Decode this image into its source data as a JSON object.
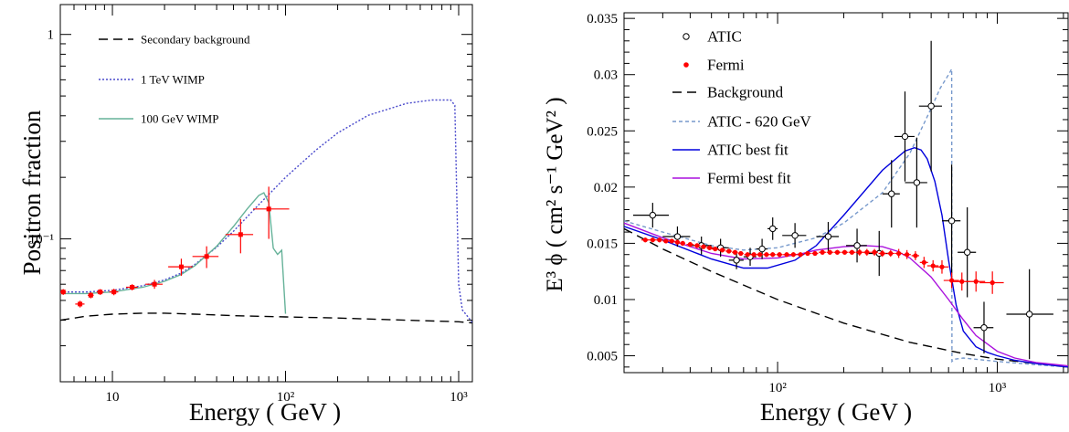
{
  "chart_data": [
    {
      "type": "line",
      "ylabel": "Positron fraction",
      "xlabel": "Energy  ( GeV )",
      "xscale": "log",
      "yscale": "log",
      "xlim": [
        5,
        1200
      ],
      "ylim": [
        0.02,
        1.4
      ],
      "x_ticks": [
        {
          "v": 10,
          "t": "10"
        },
        {
          "v": 100,
          "t": "10²"
        },
        {
          "v": 1000,
          "t": "10³"
        }
      ],
      "y_ticks": [
        {
          "v": 0.1,
          "t": "10⁻¹"
        },
        {
          "v": 1,
          "t": "1"
        }
      ],
      "legend_position": "top-left",
      "legend": [
        {
          "label": "Secondary background",
          "color": "#000000",
          "dash": "10 6"
        },
        {
          "label": "1 TeV WIMP",
          "color": "#4a4acc",
          "dash": "2 2"
        },
        {
          "label": "100 GeV WIMP",
          "color": "#66b299",
          "dash": ""
        }
      ],
      "series": [
        {
          "label": "Secondary background",
          "color": "#000000",
          "dash": "10 6",
          "x": [
            5,
            7,
            10,
            15,
            20,
            30,
            50,
            100,
            200,
            500,
            1000,
            1200
          ],
          "y": [
            0.04,
            0.0418,
            0.0428,
            0.0433,
            0.0433,
            0.0428,
            0.0421,
            0.0415,
            0.041,
            0.04,
            0.0393,
            0.0388
          ]
        },
        {
          "label": "1 TeV WIMP",
          "color": "#4a4acc",
          "dash": "2 2",
          "x": [
            5,
            7,
            10,
            15,
            20,
            25,
            30,
            40,
            50,
            70,
            100,
            150,
            200,
            300,
            500,
            700,
            900,
            950,
            1000,
            1050,
            1200
          ],
          "y": [
            0.055,
            0.055,
            0.056,
            0.059,
            0.063,
            0.068,
            0.075,
            0.091,
            0.109,
            0.147,
            0.2,
            0.272,
            0.33,
            0.402,
            0.46,
            0.478,
            0.478,
            0.45,
            0.06,
            0.045,
            0.039
          ]
        },
        {
          "label": "100 GeV WIMP",
          "color": "#66b299",
          "dash": "",
          "x": [
            5,
            7,
            10,
            15,
            20,
            25,
            30,
            40,
            50,
            60,
            70,
            75,
            80,
            85,
            90,
            95,
            100
          ],
          "y": [
            0.054,
            0.054,
            0.055,
            0.058,
            0.062,
            0.067,
            0.074,
            0.092,
            0.115,
            0.14,
            0.163,
            0.168,
            0.15,
            0.09,
            0.084,
            0.088,
            0.043
          ]
        }
      ],
      "points": [
        {
          "label": "",
          "color": "#ff0000",
          "marker": "filled-square",
          "x": [
            5.2,
            6.5,
            7.5,
            8.5,
            10.2,
            13.0,
            17.5,
            25.0,
            35.0,
            55.0,
            80.0
          ],
          "y": [
            0.055,
            0.048,
            0.053,
            0.055,
            0.055,
            0.058,
            0.06,
            0.073,
            0.082,
            0.105,
            0.14
          ],
          "xerr_lo": [
            0.2,
            0.4,
            0.3,
            0.4,
            0.6,
            1.0,
            2.0,
            4.0,
            6.0,
            10.0,
            15.0
          ],
          "xerr_hi": [
            0.2,
            0.4,
            0.3,
            0.4,
            0.6,
            1.0,
            2.0,
            4.0,
            6.0,
            10.0,
            25.0
          ],
          "yerr": [
            0.0018,
            0.0018,
            0.0018,
            0.0018,
            0.002,
            0.002,
            0.003,
            0.007,
            0.01,
            0.02,
            0.04
          ]
        }
      ]
    },
    {
      "type": "line",
      "ylabel": "E³ ϕ  ( cm² s⁻¹ GeV² )",
      "xlabel": "Energy  ( GeV )",
      "xscale": "log",
      "yscale": "linear",
      "xlim": [
        20,
        2100
      ],
      "ylim": [
        0.0035,
        0.0355
      ],
      "x_ticks": [
        {
          "v": 100,
          "t": "10²"
        },
        {
          "v": 1000,
          "t": "10³"
        }
      ],
      "y_ticks": [
        {
          "v": 0.005,
          "t": "0.005"
        },
        {
          "v": 0.01,
          "t": "0.01"
        },
        {
          "v": 0.015,
          "t": "0.015"
        },
        {
          "v": 0.02,
          "t": "0.02"
        },
        {
          "v": 0.025,
          "t": "0.025"
        },
        {
          "v": 0.03,
          "t": "0.03"
        },
        {
          "v": 0.035,
          "t": "0.035"
        }
      ],
      "legend_position": "top-left",
      "legend": [
        {
          "label": "ATIC",
          "color": "#000000",
          "marker": "open-circle"
        },
        {
          "label": "Fermi",
          "color": "#ff0000",
          "marker": "filled-circle"
        },
        {
          "label": "Background",
          "color": "#000000",
          "dash": "10 6"
        },
        {
          "label": "ATIC - 620 GeV",
          "color": "#7799cc",
          "dash": "4 3"
        },
        {
          "label": "ATIC best fit",
          "color": "#0000dd",
          "dash": ""
        },
        {
          "label": "Fermi best fit",
          "color": "#aa11dd",
          "dash": ""
        }
      ],
      "series": [
        {
          "label": "Background",
          "color": "#000000",
          "dash": "10 6",
          "x": [
            20,
            30,
            50,
            100,
            200,
            400,
            700,
            1000,
            1500,
            2100
          ],
          "y": [
            0.0163,
            0.0145,
            0.0125,
            0.01,
            0.0079,
            0.0062,
            0.0052,
            0.0047,
            0.0043,
            0.004
          ]
        },
        {
          "label": "ATIC - 620 GeV",
          "color": "#7799cc",
          "dash": "4 3",
          "x": [
            20,
            30,
            50,
            70,
            100,
            150,
            200,
            300,
            400,
            500,
            550,
            600,
            620,
            622,
            640,
            700,
            1000,
            1500,
            2100
          ],
          "y": [
            0.017,
            0.016,
            0.0148,
            0.0144,
            0.0146,
            0.0155,
            0.0168,
            0.0195,
            0.023,
            0.027,
            0.0288,
            0.03,
            0.0305,
            0.0045,
            0.0047,
            0.0048,
            0.0045,
            0.0042,
            0.004
          ]
        },
        {
          "label": "ATIC best fit",
          "color": "#0000dd",
          "dash": "",
          "x": [
            20,
            30,
            50,
            70,
            90,
            120,
            150,
            200,
            300,
            380,
            420,
            450,
            480,
            520,
            560,
            600,
            650,
            700,
            800,
            900,
            1000,
            1200,
            1500,
            2100
          ],
          "y": [
            0.0165,
            0.0153,
            0.0136,
            0.0128,
            0.0128,
            0.0135,
            0.0148,
            0.0175,
            0.0215,
            0.0232,
            0.0235,
            0.0233,
            0.0225,
            0.0205,
            0.0175,
            0.0135,
            0.0095,
            0.0072,
            0.0058,
            0.0053,
            0.005,
            0.0046,
            0.0043,
            0.004
          ]
        },
        {
          "label": "Fermi best fit",
          "color": "#aa11dd",
          "dash": "",
          "x": [
            20,
            30,
            50,
            70,
            100,
            130,
            150,
            200,
            250,
            300,
            350,
            400,
            500,
            600,
            700,
            800,
            1000,
            1200,
            1500,
            2100
          ],
          "y": [
            0.0168,
            0.0155,
            0.0141,
            0.0136,
            0.0137,
            0.0141,
            0.0144,
            0.0147,
            0.0148,
            0.0147,
            0.0143,
            0.0137,
            0.012,
            0.01,
            0.0082,
            0.0068,
            0.0054,
            0.0048,
            0.0044,
            0.0041
          ]
        }
      ],
      "points": [
        {
          "label": "ATIC",
          "color": "#000000",
          "marker": "open-circle",
          "x": [
            27,
            35,
            45,
            55,
            65,
            75,
            85,
            95,
            120,
            170,
            230,
            290,
            330,
            380,
            430,
            500,
            620,
            730,
            870,
            1400
          ],
          "y": [
            0.0175,
            0.0156,
            0.0148,
            0.0146,
            0.0135,
            0.0138,
            0.0145,
            0.0163,
            0.0157,
            0.0156,
            0.0148,
            0.0141,
            0.0194,
            0.0245,
            0.0204,
            0.0272,
            0.017,
            0.0142,
            0.0075,
            0.0087
          ],
          "xerr_lo": [
            5,
            5,
            5,
            5,
            5,
            5,
            5,
            5,
            15,
            20,
            25,
            30,
            30,
            40,
            50,
            60,
            60,
            70,
            90,
            300
          ],
          "xerr_hi": [
            5,
            5,
            5,
            5,
            5,
            5,
            5,
            5,
            15,
            20,
            25,
            30,
            30,
            40,
            50,
            60,
            60,
            70,
            90,
            400
          ],
          "yerr": [
            0.0011,
            0.0009,
            0.0008,
            0.0008,
            0.0008,
            0.0008,
            0.0009,
            0.001,
            0.0011,
            0.0013,
            0.0015,
            0.002,
            0.003,
            0.004,
            0.004,
            0.0058,
            0.005,
            0.004,
            0.0023,
            0.004
          ]
        },
        {
          "label": "Fermi",
          "color": "#ff0000",
          "marker": "filled-circle",
          "x": [
            25,
            27,
            29,
            31,
            33,
            35,
            37,
            40,
            43,
            46,
            49,
            52,
            56,
            60,
            64,
            68,
            73,
            78,
            83,
            89,
            95,
            102,
            110,
            118,
            127,
            137,
            148,
            160,
            173,
            187,
            202,
            218,
            236,
            255,
            276,
            300,
            327,
            356,
            388,
            424,
            464,
            510,
            560,
            620,
            690,
            800,
            950
          ],
          "y": [
            0.0153,
            0.0153,
            0.0153,
            0.0152,
            0.0152,
            0.0151,
            0.015,
            0.0149,
            0.0148,
            0.0147,
            0.0146,
            0.0145,
            0.0144,
            0.0143,
            0.0142,
            0.0141,
            0.014,
            0.014,
            0.014,
            0.014,
            0.014,
            0.014,
            0.014,
            0.014,
            0.014,
            0.0141,
            0.0141,
            0.0142,
            0.0142,
            0.0142,
            0.0142,
            0.0142,
            0.0142,
            0.0142,
            0.0142,
            0.0141,
            0.0141,
            0.0141,
            0.014,
            0.0139,
            0.0133,
            0.013,
            0.0129,
            0.0117,
            0.0116,
            0.0116,
            0.0115
          ],
          "xerr_lo": [
            1,
            1,
            1,
            1,
            1,
            1,
            1,
            1.5,
            1.5,
            1.5,
            1.5,
            2,
            2,
            2,
            2,
            2,
            2.5,
            2.5,
            2.5,
            3,
            3,
            3.5,
            4,
            4,
            4.5,
            5,
            5,
            6,
            6,
            7,
            7,
            8,
            9,
            10,
            10,
            12,
            13,
            14,
            16,
            17,
            20,
            30,
            40,
            50,
            60,
            80,
            120
          ],
          "xerr_hi": [
            1,
            1,
            1,
            1,
            1,
            1,
            1,
            1.5,
            1.5,
            1.5,
            1.5,
            2,
            2,
            2,
            2,
            2,
            2.5,
            2.5,
            2.5,
            3,
            3,
            3.5,
            4,
            4,
            4.5,
            5,
            5,
            6,
            6,
            7,
            7,
            8,
            9,
            10,
            10,
            12,
            13,
            14,
            16,
            17,
            20,
            30,
            40,
            50,
            60,
            80,
            120
          ],
          "yerr": [
            0.0002,
            0.0002,
            0.0002,
            0.0002,
            0.0002,
            0.0002,
            0.0002,
            0.0002,
            0.0002,
            0.0002,
            0.0002,
            0.0002,
            0.0002,
            0.0002,
            0.0002,
            0.0002,
            0.0002,
            0.0002,
            0.0002,
            0.0002,
            0.0002,
            0.0002,
            0.0002,
            0.0002,
            0.0002,
            0.0002,
            0.0002,
            0.0002,
            0.0002,
            0.0002,
            0.0002,
            0.0002,
            0.0003,
            0.0003,
            0.0003,
            0.0003,
            0.0003,
            0.0004,
            0.0004,
            0.0004,
            0.0005,
            0.0005,
            0.0006,
            0.0007,
            0.0008,
            0.0009,
            0.001
          ]
        }
      ]
    }
  ]
}
